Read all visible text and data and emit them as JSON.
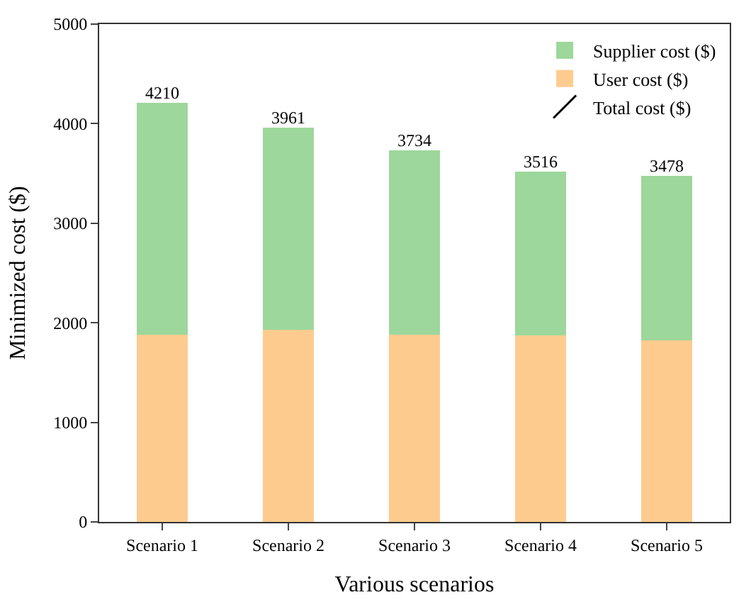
{
  "chart_data": {
    "type": "bar",
    "stacked": true,
    "xlabel": "Various scenarios",
    "ylabel": "Minimized cost ($)",
    "categories": [
      "Scenario 1",
      "Scenario 2",
      "Scenario 3",
      "Scenario 4",
      "Scenario 5"
    ],
    "series": [
      {
        "name": "User cost ($)",
        "color": "#fecb8f",
        "values": [
          1880,
          1930,
          1880,
          1870,
          1820
        ]
      },
      {
        "name": "Supplier cost ($)",
        "color": "#9dd79b",
        "values": [
          2330,
          2031,
          1854,
          1646,
          1658
        ]
      }
    ],
    "totals": [
      "4210",
      "3961",
      "3734",
      "3516",
      "3478"
    ],
    "annotations": [
      "Total cost ($)"
    ],
    "ylim": [
      0,
      5000
    ],
    "yticks": [
      0,
      1000,
      2000,
      3000,
      4000,
      5000
    ],
    "grid": false,
    "legend": "top right"
  }
}
